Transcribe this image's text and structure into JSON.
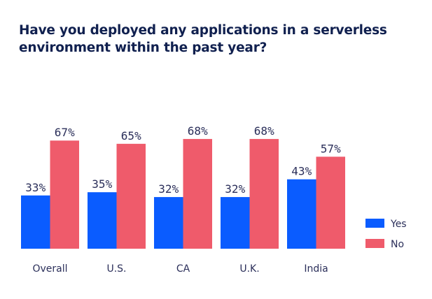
{
  "chart_data": {
    "type": "bar",
    "title": "Have you deployed any applications in a serverless environment within the past year?",
    "title_lines": [
      "Have you deployed any applications in a serverless",
      "environment within the past year?"
    ],
    "categories": [
      "Overall",
      "U.S.",
      "CA",
      "U.K.",
      "India"
    ],
    "series": [
      {
        "name": "Yes",
        "color": "#0a5cff",
        "values": [
          33,
          35,
          32,
          32,
          43
        ]
      },
      {
        "name": "No",
        "color": "#ef5b6b",
        "values": [
          67,
          65,
          68,
          68,
          57
        ]
      }
    ],
    "value_suffix": "%",
    "xlabel": "",
    "ylabel": "",
    "ylim": [
      0,
      100
    ],
    "grid": false,
    "legend_position": "bottom-right"
  }
}
